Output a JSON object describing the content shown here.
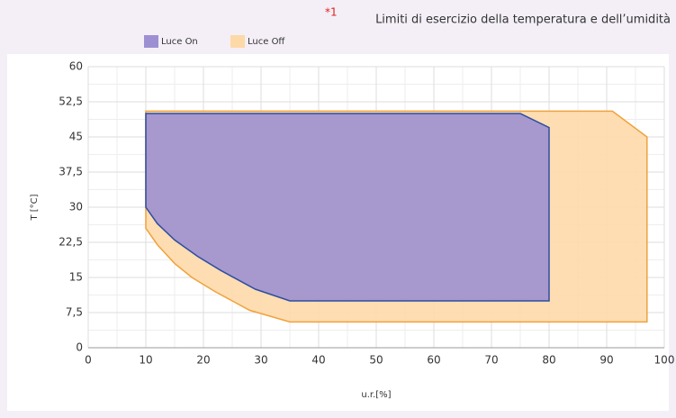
{
  "chart_data": {
    "type": "area",
    "title_mark": "*1",
    "title": "Limiti di esercizio della temperatura e dell’umidità",
    "x_label": "u.r.[%]",
    "y_label": "T [°C]",
    "xlim": [
      0,
      100
    ],
    "xticks": [
      0,
      10,
      20,
      30,
      40,
      50,
      60,
      70,
      80,
      90,
      100
    ],
    "ylim": [
      0,
      60
    ],
    "yticks": [
      0,
      {
        "value": 7.5,
        "label": "7,5"
      },
      15,
      {
        "value": 22.5,
        "label": "22,5"
      },
      30,
      {
        "value": 37.5,
        "label": "37,5"
      },
      45,
      {
        "value": 52.5,
        "label": "52,5"
      },
      60
    ],
    "grid": true,
    "series": [
      {
        "name": "Luce Off",
        "color": "#fdd9a8",
        "edge_color": "#f0a23c",
        "x": [
          10,
          91,
          97,
          97,
          35,
          28,
          22,
          18,
          15,
          12,
          10
        ],
        "values": [
          50.5,
          50.5,
          45,
          5.5,
          5.5,
          8,
          12,
          15,
          18,
          22,
          25.5
        ]
      },
      {
        "name": "Luce On",
        "color": "#9d90d2",
        "edge_color": "#2c4ea0",
        "x": [
          10,
          75,
          80,
          80,
          35,
          29,
          23,
          19,
          15,
          12,
          10
        ],
        "values": [
          50,
          50,
          47,
          10,
          10,
          12.5,
          16.5,
          19.5,
          23,
          26.5,
          30
        ]
      }
    ]
  }
}
